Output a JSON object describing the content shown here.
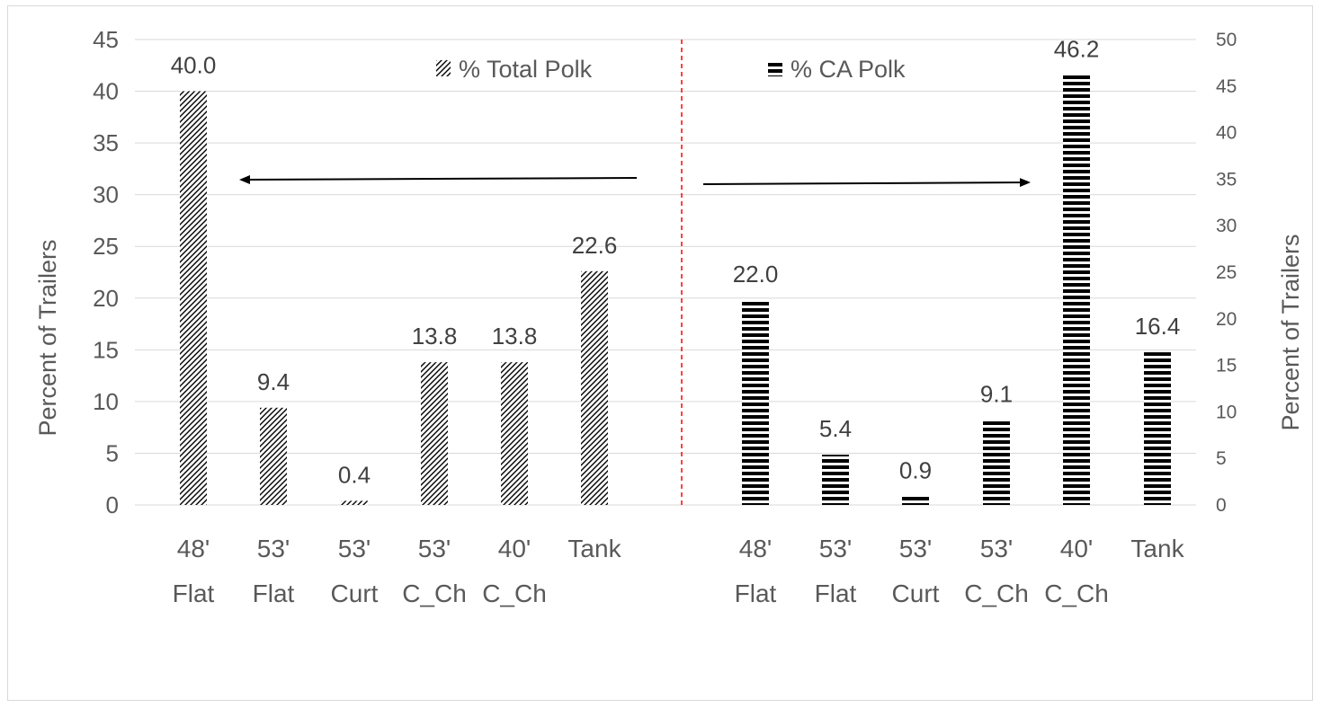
{
  "chart_data": {
    "type": "bar",
    "legend_placement": "top (one entry above each panel)",
    "grid": true,
    "colors": {
      "bar": "#000000",
      "text": "#595959",
      "gridline": "#d9d9d9",
      "divider": "#ff0000"
    },
    "left_axis": {
      "ylabel": "Percent of Trailers",
      "ylim": [
        0,
        45
      ],
      "ticks": [
        0,
        5,
        10,
        15,
        20,
        25,
        30,
        35,
        40,
        45
      ]
    },
    "right_axis": {
      "ylabel": "Percent of Trailers",
      "ylim": [
        0,
        50
      ],
      "ticks": [
        0,
        5,
        10,
        15,
        20,
        25,
        30,
        35,
        40,
        45,
        50
      ]
    },
    "series": [
      {
        "name": "% Total Polk",
        "axis": "left",
        "pattern": "diagonal-hatch",
        "categories": [
          [
            "48'",
            "Flat"
          ],
          [
            "53'",
            "Flat"
          ],
          [
            "53'",
            "Curt"
          ],
          [
            "53'",
            "C_Ch"
          ],
          [
            "40'",
            "C_Ch"
          ],
          [
            "Tank"
          ]
        ],
        "values": [
          40.0,
          9.4,
          0.4,
          13.8,
          13.8,
          22.6
        ],
        "data_labels": [
          "40.0",
          "9.4",
          "0.4",
          "13.8",
          "13.8",
          "22.6"
        ]
      },
      {
        "name": "% CA Polk",
        "axis": "right",
        "pattern": "horizontal-stripes",
        "categories": [
          [
            "48'",
            "Flat"
          ],
          [
            "53'",
            "Flat"
          ],
          [
            "53'",
            "Curt"
          ],
          [
            "53'",
            "C_Ch"
          ],
          [
            "40'",
            "C_Ch"
          ],
          [
            "Tank"
          ]
        ],
        "values": [
          22.0,
          5.4,
          0.9,
          9.1,
          46.2,
          16.4
        ],
        "data_labels": [
          "22.0",
          "5.4",
          "0.9",
          "9.1",
          "46.2",
          "16.4"
        ]
      }
    ]
  }
}
